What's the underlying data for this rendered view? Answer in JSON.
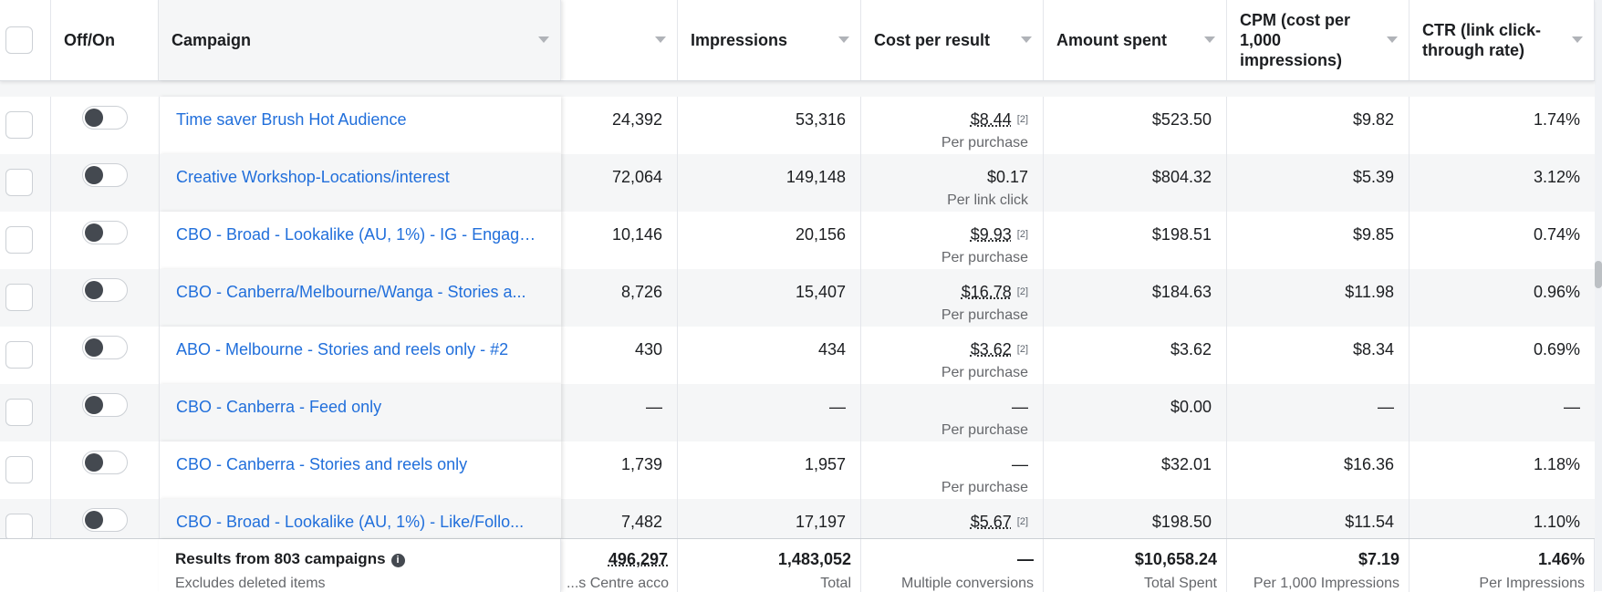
{
  "header": {
    "offon": "Off/On",
    "campaign": "Campaign",
    "results": "",
    "impressions": "Impressions",
    "cost_per_result": "Cost per result",
    "amount_spent": "Amount spent",
    "cpm": "CPM (cost per 1,000 impressions)",
    "ctr": "CTR (link click-through rate)"
  },
  "rows": [
    {
      "campaign": "Time saver Brush Hot Audience",
      "results": "24,392",
      "impressions": "53,316",
      "cpr": "$8.44",
      "cpr_note": "[2]",
      "cpr_sub": "Per purchase",
      "spent": "$523.50",
      "cpm": "$9.82",
      "ctr": "1.74%"
    },
    {
      "campaign": "Creative Workshop-Locations/interest",
      "results": "72,064",
      "impressions": "149,148",
      "cpr": "$0.17",
      "cpr_note": "",
      "cpr_sub": "Per link click",
      "spent": "$804.32",
      "cpm": "$5.39",
      "ctr": "3.12%"
    },
    {
      "campaign": "CBO - Broad - Lookalike (AU, 1%) - IG - Engage...",
      "results": "10,146",
      "impressions": "20,156",
      "cpr": "$9.93",
      "cpr_note": "[2]",
      "cpr_sub": "Per purchase",
      "spent": "$198.51",
      "cpm": "$9.85",
      "ctr": "0.74%"
    },
    {
      "campaign": "CBO - Canberra/Melbourne/Wanga - Stories a...",
      "results": "8,726",
      "impressions": "15,407",
      "cpr": "$16.78",
      "cpr_note": "[2]",
      "cpr_sub": "Per purchase",
      "spent": "$184.63",
      "cpm": "$11.98",
      "ctr": "0.96%"
    },
    {
      "campaign": "ABO - Melbourne - Stories and reels only - #2",
      "results": "430",
      "impressions": "434",
      "cpr": "$3.62",
      "cpr_note": "[2]",
      "cpr_sub": "Per purchase",
      "spent": "$3.62",
      "cpm": "$8.34",
      "ctr": "0.69%"
    },
    {
      "campaign": "CBO - Canberra - Feed only",
      "results": "—",
      "impressions": "—",
      "cpr": "—",
      "cpr_note": "",
      "cpr_sub": "Per purchase",
      "spent": "$0.00",
      "cpm": "—",
      "ctr": "—"
    },
    {
      "campaign": "CBO - Canberra - Stories and reels only",
      "results": "1,739",
      "impressions": "1,957",
      "cpr": "—",
      "cpr_note": "",
      "cpr_sub": "Per purchase",
      "spent": "$32.01",
      "cpm": "$16.36",
      "ctr": "1.18%"
    },
    {
      "campaign": "CBO - Broad - Lookalike (AU, 1%) - Like/Follo...",
      "results": "7,482",
      "impressions": "17,197",
      "cpr": "$5.67",
      "cpr_note": "[2]",
      "cpr_sub": "",
      "spent": "$198.50",
      "cpm": "$11.54",
      "ctr": "1.10%"
    }
  ],
  "footer": {
    "title": "Results from 803 campaigns",
    "subtitle": "Excludes deleted items",
    "results_total": "496,297",
    "results_caption": "s Centre acco...",
    "impressions_total": "1,483,052",
    "impressions_caption": "Total",
    "cpr_total": "—",
    "cpr_caption": "Multiple conversions",
    "spent_total": "$10,658.24",
    "spent_caption": "Total Spent",
    "cpm_total": "$7.19",
    "cpm_caption": "Per 1,000 Impressions",
    "ctr_total": "1.46%",
    "ctr_caption": "Per Impressions"
  },
  "icons": {
    "info": "info-icon",
    "sort": "sort-caret-icon"
  }
}
